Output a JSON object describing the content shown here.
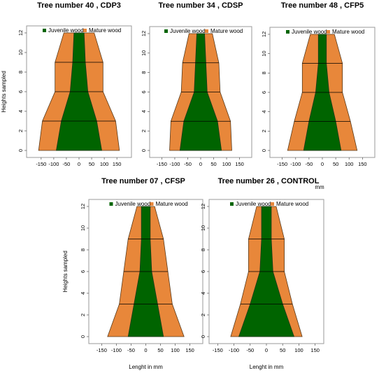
{
  "colors": {
    "juvenile": "#006400",
    "mature": "#E8873A",
    "frame": "#9a9a9a",
    "boundary": "#000000"
  },
  "chart_data": [
    {
      "type": "area",
      "title": "Tree number 40 , CDP3",
      "xlabel": "",
      "ylabel": "Heights sampled",
      "xlim": [
        -180,
        180
      ],
      "ylim": [
        0,
        12
      ],
      "xticks": [
        "-150",
        "-100",
        "-50",
        "0",
        "50",
        "100",
        "150"
      ],
      "yticks": [
        "0",
        "2",
        "4",
        "6",
        "8",
        "10",
        "12"
      ],
      "legend": [
        "Juvenile wood",
        "Mature wood"
      ],
      "heights": [
        0,
        3,
        6,
        9,
        12
      ],
      "series": [
        {
          "name": "Juvenile wood",
          "half_width": [
            90,
            70,
            35,
            25,
            20
          ]
        },
        {
          "name": "Mature wood",
          "half_width": [
            160,
            145,
            95,
            95,
            60
          ]
        }
      ]
    },
    {
      "type": "area",
      "title": "Tree number 34 , CDSP",
      "xlabel": "",
      "ylabel": "",
      "xlim": [
        -170,
        170
      ],
      "ylim": [
        0,
        12
      ],
      "xticks": [
        "-150",
        "-100",
        "-50",
        "0",
        "50",
        "100",
        "150"
      ],
      "yticks": [
        "0",
        "2",
        "4",
        "6",
        "8",
        "10",
        "12"
      ],
      "legend": [
        "Juvenile wood",
        "Mature wood"
      ],
      "heights": [
        0,
        3,
        6,
        9,
        12
      ],
      "series": [
        {
          "name": "Juvenile wood",
          "half_width": [
            80,
            65,
            25,
            20,
            15
          ]
        },
        {
          "name": "Mature wood",
          "half_width": [
            120,
            115,
            75,
            70,
            45
          ]
        }
      ]
    },
    {
      "type": "area",
      "title": "Tree number 48 , CFP5",
      "xlabel": "mm",
      "ylabel": "",
      "xlim": [
        -170,
        170
      ],
      "ylim": [
        0,
        12
      ],
      "xticks": [
        "-150",
        "-100",
        "-50",
        "0",
        "50",
        "100",
        "150"
      ],
      "yticks": [
        "0",
        "2",
        "4",
        "6",
        "8",
        "10",
        "12"
      ],
      "legend": [
        "Juvenile wood",
        "Mature wood"
      ],
      "heights": [
        0,
        3,
        6,
        9,
        12
      ],
      "series": [
        {
          "name": "Juvenile wood",
          "half_width": [
            70,
            50,
            25,
            15,
            15
          ]
        },
        {
          "name": "Mature wood",
          "half_width": [
            130,
            105,
            75,
            75,
            45
          ]
        }
      ]
    },
    {
      "type": "area",
      "title": "Tree number 07 , CFSP",
      "xlabel": "Lenght in mm",
      "ylabel": "Heights sampled",
      "xlim": [
        -170,
        170
      ],
      "ylim": [
        0,
        12
      ],
      "xticks": [
        "-150",
        "-100",
        "-50",
        "0",
        "50",
        "100",
        "150"
      ],
      "yticks": [
        "0",
        "2",
        "4",
        "6",
        "8",
        "10",
        "12"
      ],
      "legend": [
        "Juvenile wood",
        "Mature wood"
      ],
      "heights": [
        0,
        3,
        6,
        9,
        12
      ],
      "series": [
        {
          "name": "Juvenile wood",
          "half_width": [
            60,
            40,
            20,
            15,
            15
          ]
        },
        {
          "name": "Mature wood",
          "half_width": [
            130,
            90,
            75,
            60,
            30
          ]
        }
      ]
    },
    {
      "type": "area",
      "title": "Tree number 26 , CONTROL",
      "xlabel": "Lenght in mm",
      "ylabel": "",
      "xlim": [
        -155,
        155
      ],
      "ylim": [
        0,
        12
      ],
      "xticks": [
        "-150",
        "-100",
        "-50",
        "0",
        "50",
        "100",
        "150"
      ],
      "yticks": [
        "0",
        "2",
        "4",
        "6",
        "8",
        "10",
        "12"
      ],
      "legend": [
        "Juvenile wood",
        "Mature wood"
      ],
      "heights": [
        0,
        3,
        6,
        9,
        12
      ],
      "series": [
        {
          "name": "Juvenile wood",
          "half_width": [
            85,
            50,
            20,
            15,
            15
          ]
        },
        {
          "name": "Mature wood",
          "half_width": [
            110,
            80,
            55,
            55,
            30
          ]
        }
      ]
    }
  ]
}
